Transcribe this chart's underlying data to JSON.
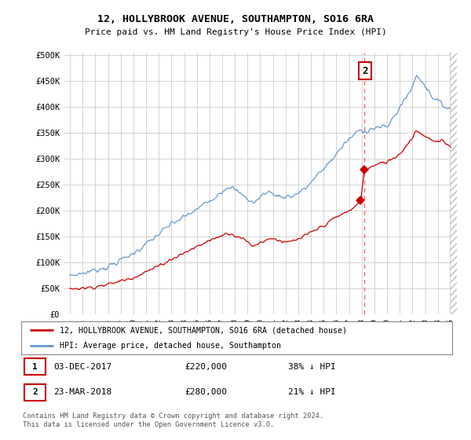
{
  "title": "12, HOLLYBROOK AVENUE, SOUTHAMPTON, SO16 6RA",
  "subtitle": "Price paid vs. HM Land Registry's House Price Index (HPI)",
  "ylim": [
    0,
    500000
  ],
  "yticks": [
    0,
    50000,
    100000,
    150000,
    200000,
    250000,
    300000,
    350000,
    400000,
    450000,
    500000
  ],
  "ytick_labels": [
    "£0",
    "£50K",
    "£100K",
    "£150K",
    "£200K",
    "£250K",
    "£300K",
    "£350K",
    "£400K",
    "£450K",
    "£500K"
  ],
  "hpi_color": "#6699cc",
  "price_color": "#cc0000",
  "dashed_color": "#ff6666",
  "background_color": "#ffffff",
  "grid_color": "#cccccc",
  "transaction1": {
    "date": "03-DEC-2017",
    "price": 220000,
    "pct": "38%",
    "direction": "↓"
  },
  "transaction2": {
    "date": "23-MAR-2018",
    "price": 280000,
    "pct": "21%",
    "direction": "↓"
  },
  "legend_entry1": "12, HOLLYBROOK AVENUE, SOUTHAMPTON, SO16 6RA (detached house)",
  "legend_entry2": "HPI: Average price, detached house, Southampton",
  "footer": "Contains HM Land Registry data © Crown copyright and database right 2024.\nThis data is licensed under the Open Government Licence v3.0.",
  "t1_year": 2017.92,
  "t2_year": 2018.21,
  "t1_price": 220000,
  "t2_price": 280000
}
